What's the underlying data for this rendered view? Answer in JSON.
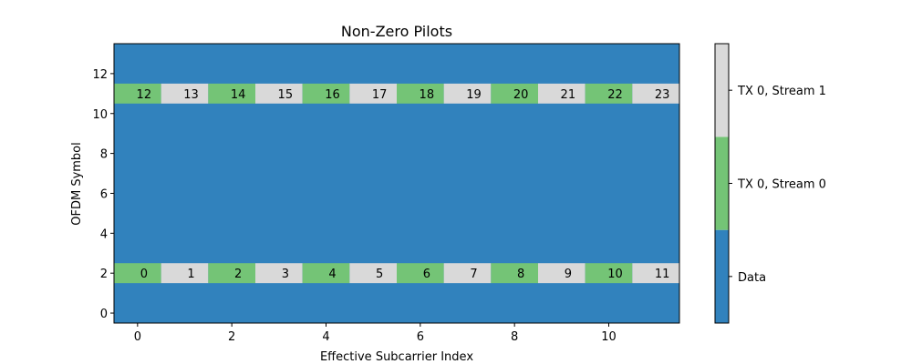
{
  "chart_data": {
    "type": "heatmap",
    "title": "Non-Zero Pilots",
    "xlabel": "Effective Subcarrier Index",
    "ylabel": "OFDM Symbol",
    "x_range": [
      -0.5,
      11.5
    ],
    "y_range": [
      -0.5,
      13.5
    ],
    "x_ticks": [
      0,
      2,
      4,
      6,
      8,
      10
    ],
    "y_ticks": [
      0,
      2,
      4,
      6,
      8,
      10,
      12
    ],
    "num_subcarriers": 12,
    "num_symbols": 14,
    "categories": [
      {
        "value": 0,
        "label": "Data",
        "color": "#3182bd"
      },
      {
        "value": 1,
        "label": "TX 0, Stream 0",
        "color": "#74c476"
      },
      {
        "value": 2,
        "label": "TX 0, Stream 1",
        "color": "#d9d9d9"
      }
    ],
    "default_value": 0,
    "pilot_rows": [
      {
        "symbol": 2,
        "values": [
          1,
          2,
          1,
          2,
          1,
          2,
          1,
          2,
          1,
          2,
          1,
          2
        ],
        "labels": [
          "0",
          "1",
          "2",
          "3",
          "4",
          "5",
          "6",
          "7",
          "8",
          "9",
          "10",
          "11"
        ]
      },
      {
        "symbol": 11,
        "values": [
          1,
          2,
          1,
          2,
          1,
          2,
          1,
          2,
          1,
          2,
          1,
          2
        ],
        "labels": [
          "12",
          "13",
          "14",
          "15",
          "16",
          "17",
          "18",
          "19",
          "20",
          "21",
          "22",
          "23"
        ]
      }
    ],
    "colorbar": {
      "ticks": [
        "Data",
        "TX 0, Stream 0",
        "TX 0, Stream 1"
      ]
    },
    "grid": false
  }
}
